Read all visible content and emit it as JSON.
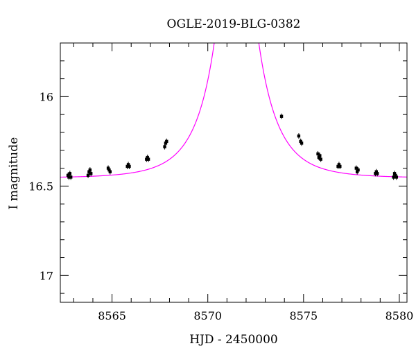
{
  "chart_data": {
    "type": "scatter",
    "title": "OGLE-2019-BLG-0382",
    "xlabel": "HJD - 2450000",
    "ylabel": "I magnitude",
    "xlim": [
      8562.3,
      8580.4
    ],
    "ylim": [
      17.15,
      15.7
    ],
    "y_inverted": true,
    "x_ticks": [
      8565,
      8570,
      8575,
      8580
    ],
    "x_tick_labels": [
      "8565",
      "8570",
      "8575",
      "8580"
    ],
    "y_ticks": [
      16,
      16.5,
      17
    ],
    "y_tick_labels": [
      "16",
      "16.5",
      "17"
    ],
    "grid": false,
    "series": [
      {
        "type": "scatter",
        "color": "#000000",
        "points": [
          [
            8562.7,
            16.44
          ],
          [
            8562.75,
            16.45
          ],
          [
            8562.8,
            16.43
          ],
          [
            8562.85,
            16.45
          ],
          [
            8563.75,
            16.44
          ],
          [
            8563.8,
            16.42
          ],
          [
            8563.85,
            16.41
          ],
          [
            8563.9,
            16.43
          ],
          [
            8564.8,
            16.4
          ],
          [
            8564.85,
            16.41
          ],
          [
            8564.9,
            16.42
          ],
          [
            8565.8,
            16.39
          ],
          [
            8565.85,
            16.38
          ],
          [
            8565.9,
            16.39
          ],
          [
            8566.8,
            16.35
          ],
          [
            8566.85,
            16.34
          ],
          [
            8566.9,
            16.35
          ],
          [
            8567.75,
            16.28
          ],
          [
            8567.8,
            16.26
          ],
          [
            8567.85,
            16.25
          ],
          [
            8573.85,
            16.11
          ],
          [
            8574.75,
            16.22
          ],
          [
            8574.85,
            16.25
          ],
          [
            8574.9,
            16.26
          ],
          [
            8575.75,
            16.32
          ],
          [
            8575.8,
            16.34
          ],
          [
            8575.85,
            16.33
          ],
          [
            8575.9,
            16.35
          ],
          [
            8576.8,
            16.39
          ],
          [
            8576.85,
            16.38
          ],
          [
            8576.9,
            16.39
          ],
          [
            8577.75,
            16.4
          ],
          [
            8577.8,
            16.42
          ],
          [
            8577.85,
            16.41
          ],
          [
            8578.75,
            16.43
          ],
          [
            8578.8,
            16.42
          ],
          [
            8578.85,
            16.43
          ],
          [
            8579.7,
            16.45
          ],
          [
            8579.75,
            16.43
          ],
          [
            8579.8,
            16.44
          ],
          [
            8579.85,
            16.45
          ]
        ]
      },
      {
        "type": "line",
        "color": "#ff00ff",
        "model": {
          "kind": "paczynski",
          "t0": 8571.5,
          "u0": 0.006,
          "tE": 2.1,
          "baseline": 16.455
        }
      }
    ]
  }
}
